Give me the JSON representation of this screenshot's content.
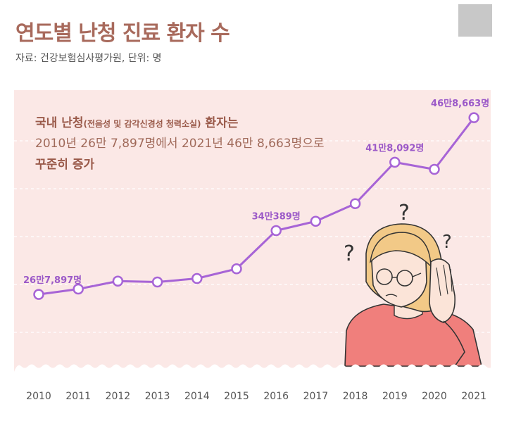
{
  "header": {
    "title": "연도별 난청 진료 환자 수",
    "source": "자료: 건강보험심사평가원, 단위: 명"
  },
  "note": {
    "line1_a": "국내 난청",
    "line1_b": "(전음성 및 감각신경성 청력소실)",
    "line1_c": " 환자는",
    "line2": "2010년 26만 7,897명에서 2021년 46만 8,663명으로",
    "line3": "꾸준히 증가"
  },
  "colors": {
    "title": "#a86a5c",
    "plot_background": "#fbe8e6",
    "line": "#a764d6",
    "label": "#9b59c8"
  },
  "illustration": "confused-woman-with-question-marks",
  "chart_data": {
    "type": "line",
    "categories": [
      "2010",
      "2011",
      "2012",
      "2013",
      "2014",
      "2015",
      "2016",
      "2017",
      "2018",
      "2019",
      "2020",
      "2021"
    ],
    "values": [
      267897,
      274000,
      283000,
      282000,
      286000,
      297000,
      340389,
      351000,
      371000,
      418092,
      410000,
      468663
    ],
    "data_labels": [
      {
        "index": 0,
        "text": "26만7,897명"
      },
      {
        "index": 6,
        "text": "34만389명"
      },
      {
        "index": 9,
        "text": "41만8,092명"
      },
      {
        "index": 11,
        "text": "46만8,663명"
      }
    ],
    "ylim": [
      180000,
      500000
    ],
    "grid": "horizontal-dashed",
    "title": "연도별 난청 진료 환자 수",
    "xlabel": "",
    "ylabel": ""
  }
}
